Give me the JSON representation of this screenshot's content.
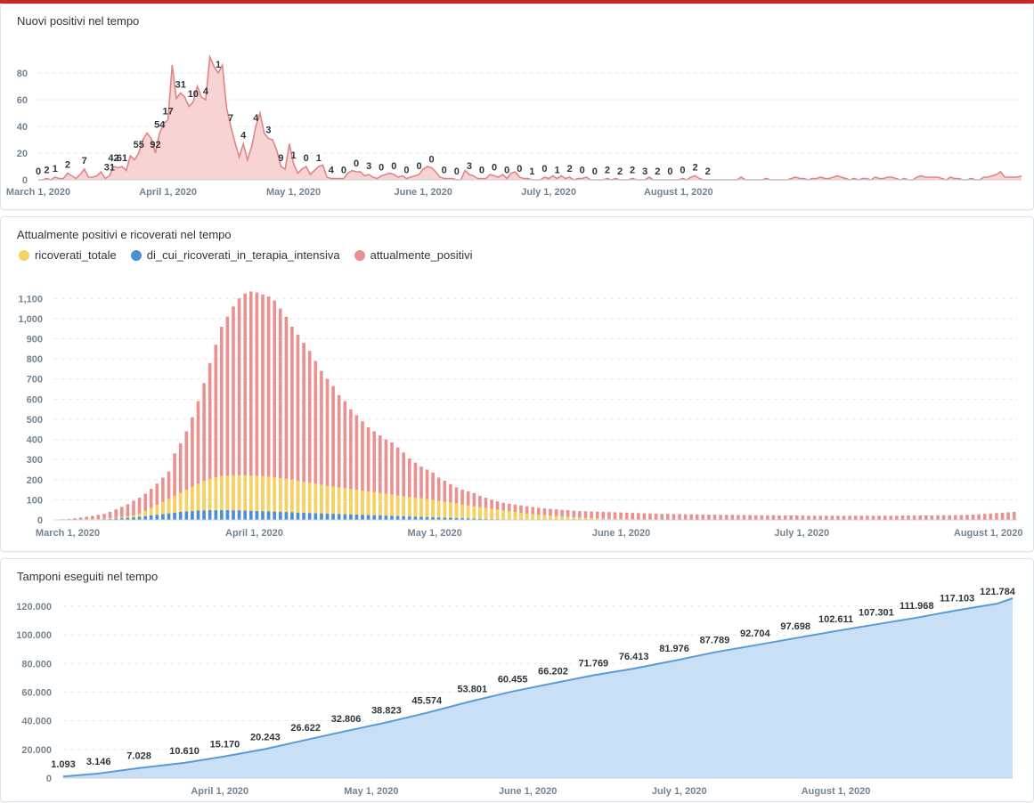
{
  "colors": {
    "accent_bar": "#c62828",
    "area1_line": "#e08585",
    "area1_fill": "#f8d3d3",
    "ricoverati": "#f4d35e",
    "terapia": "#4a90d9",
    "positivi": "#ec8f8f",
    "area3_line": "#5b9bd5",
    "area3_fill": "#c9dff5"
  },
  "chart_data": [
    {
      "type": "area",
      "title": "Nuovi positivi nel tempo",
      "x_tick_labels": [
        "March 1, 2020",
        "April 1, 2020",
        "May 1, 2020",
        "June 1, 2020",
        "July 1, 2020",
        "August 1, 2020"
      ],
      "y_ticks": [
        "0",
        "20",
        "40",
        "60",
        "80"
      ],
      "ylim": [
        0,
        100
      ],
      "x_start": "2020-03-01",
      "values": [
        0,
        0,
        1,
        0,
        2,
        1,
        1,
        5,
        3,
        1,
        4,
        8,
        2,
        2,
        3,
        6,
        1,
        3,
        10,
        9,
        10,
        7,
        18,
        15,
        20,
        30,
        35,
        31,
        20,
        35,
        42,
        45,
        86,
        61,
        65,
        62,
        55,
        58,
        70,
        62,
        60,
        92,
        85,
        80,
        86,
        54,
        40,
        28,
        17,
        27,
        15,
        25,
        40,
        50,
        35,
        31,
        30,
        22,
        10,
        8,
        27,
        12,
        5,
        8,
        10,
        4,
        7,
        10,
        11,
        2,
        1,
        1,
        1,
        1,
        5,
        7,
        6,
        6,
        3,
        4,
        2,
        1,
        3,
        4,
        5,
        4,
        2,
        3,
        1,
        2,
        3,
        4,
        8,
        10,
        9,
        6,
        2,
        1,
        1,
        1,
        0,
        0,
        7,
        4,
        3,
        1,
        1,
        1,
        4,
        3,
        2,
        4,
        1,
        5,
        6,
        2,
        1,
        1,
        0,
        0,
        0,
        2,
        1,
        3,
        1,
        3,
        1,
        2,
        0,
        1,
        1,
        2,
        0,
        0,
        0,
        0,
        1,
        0,
        1,
        0,
        0,
        0,
        1,
        0,
        0,
        0,
        2,
        0,
        0,
        0,
        0,
        0,
        0,
        0,
        1,
        0,
        2,
        3,
        1,
        0,
        0,
        0,
        0,
        0,
        0,
        0,
        0,
        0,
        2,
        0,
        0,
        0,
        0,
        0,
        1,
        0,
        0,
        0,
        0,
        0,
        1,
        2,
        1,
        1,
        0,
        1,
        1,
        2,
        1,
        1,
        2,
        3,
        2,
        1,
        0,
        1,
        0,
        1,
        1,
        0,
        2,
        1,
        1,
        2,
        2,
        1,
        0,
        1,
        0,
        0,
        2,
        3,
        2,
        2,
        2,
        2,
        1,
        0,
        2,
        1,
        1,
        0,
        0,
        1,
        0,
        0,
        2,
        2,
        3,
        4,
        6,
        2,
        2,
        2,
        2,
        3
      ],
      "data_labels": [
        {
          "x": "2020-03-01",
          "label": "0"
        },
        {
          "x": "2020-03-03",
          "label": "2"
        },
        {
          "x": "2020-03-05",
          "label": "1"
        },
        {
          "x": "2020-03-08",
          "label": "2"
        },
        {
          "x": "2020-03-12",
          "label": "7"
        },
        {
          "x": "2020-03-18",
          "label": "31"
        },
        {
          "x": "2020-03-19",
          "label": "42"
        },
        {
          "x": "2020-03-21",
          "label": "61"
        },
        {
          "x": "2020-03-25",
          "label": "55"
        },
        {
          "x": "2020-03-29",
          "label": "92"
        },
        {
          "x": "2020-03-30",
          "label": "54"
        },
        {
          "x": "2020-04-01",
          "label": "17"
        },
        {
          "x": "2020-04-04",
          "label": "31"
        },
        {
          "x": "2020-04-07",
          "label": "10"
        },
        {
          "x": "2020-04-10",
          "label": "4"
        },
        {
          "x": "2020-04-13",
          "label": "1"
        },
        {
          "x": "2020-04-16",
          "label": "7"
        },
        {
          "x": "2020-04-19",
          "label": "4"
        },
        {
          "x": "2020-04-22",
          "label": "4"
        },
        {
          "x": "2020-04-25",
          "label": "3"
        },
        {
          "x": "2020-04-28",
          "label": "9"
        },
        {
          "x": "2020-05-01",
          "label": "1"
        },
        {
          "x": "2020-05-04",
          "label": "0"
        },
        {
          "x": "2020-05-07",
          "label": "1"
        },
        {
          "x": "2020-05-10",
          "label": "4"
        },
        {
          "x": "2020-05-13",
          "label": "0"
        },
        {
          "x": "2020-05-16",
          "label": "0"
        },
        {
          "x": "2020-05-19",
          "label": "3"
        },
        {
          "x": "2020-05-22",
          "label": "0"
        },
        {
          "x": "2020-05-25",
          "label": "0"
        },
        {
          "x": "2020-05-28",
          "label": "0"
        },
        {
          "x": "2020-05-31",
          "label": "0"
        },
        {
          "x": "2020-06-03",
          "label": "0"
        },
        {
          "x": "2020-06-06",
          "label": "0"
        },
        {
          "x": "2020-06-09",
          "label": "0"
        },
        {
          "x": "2020-06-12",
          "label": "3"
        },
        {
          "x": "2020-06-15",
          "label": "0"
        },
        {
          "x": "2020-06-18",
          "label": "0"
        },
        {
          "x": "2020-06-21",
          "label": "0"
        },
        {
          "x": "2020-06-24",
          "label": "0"
        },
        {
          "x": "2020-06-27",
          "label": "1"
        },
        {
          "x": "2020-06-30",
          "label": "0"
        },
        {
          "x": "2020-07-03",
          "label": "1"
        },
        {
          "x": "2020-07-06",
          "label": "2"
        },
        {
          "x": "2020-07-09",
          "label": "0"
        },
        {
          "x": "2020-07-12",
          "label": "0"
        },
        {
          "x": "2020-07-15",
          "label": "2"
        },
        {
          "x": "2020-07-18",
          "label": "2"
        },
        {
          "x": "2020-07-21",
          "label": "2"
        },
        {
          "x": "2020-07-24",
          "label": "3"
        },
        {
          "x": "2020-07-27",
          "label": "2"
        },
        {
          "x": "2020-07-30",
          "label": "0"
        },
        {
          "x": "2020-08-02",
          "label": "0"
        },
        {
          "x": "2020-08-05",
          "label": "2"
        },
        {
          "x": "2020-08-08",
          "label": "2"
        }
      ]
    },
    {
      "type": "bar",
      "title": "Attualmente positivi e ricoverati nel tempo",
      "legend": [
        "ricoverati_totale",
        "di_cui_ricoverati_in_terapia_intensiva",
        "attualmente_positivi"
      ],
      "x_tick_labels": [
        "March 1, 2020",
        "April 1, 2020",
        "May 1, 2020",
        "June 1, 2020",
        "July 1, 2020",
        "August 1, 2020"
      ],
      "y_ticks": [
        "0",
        "100",
        "200",
        "300",
        "400",
        "500",
        "600",
        "700",
        "800",
        "900",
        "1,000",
        "1,100"
      ],
      "ylim": [
        0,
        1150
      ],
      "x_start": "2020-03-01",
      "series": [
        {
          "name": "attualmente_positivi",
          "values": [
            1,
            3,
            5,
            8,
            12,
            16,
            20,
            25,
            30,
            40,
            52,
            65,
            78,
            95,
            110,
            130,
            155,
            180,
            210,
            240,
            330,
            380,
            440,
            510,
            590,
            680,
            780,
            870,
            960,
            1010,
            1060,
            1100,
            1125,
            1135,
            1130,
            1120,
            1110,
            1090,
            1050,
            1010,
            960,
            920,
            880,
            840,
            790,
            740,
            700,
            665,
            620,
            590,
            550,
            520,
            490,
            460,
            440,
            420,
            400,
            385,
            360,
            335,
            305,
            285,
            265,
            250,
            235,
            210,
            195,
            178,
            162,
            150,
            142,
            133,
            120,
            110,
            100,
            92,
            85,
            80,
            76,
            72,
            68,
            64,
            60,
            57,
            55,
            52,
            50,
            48,
            46,
            44,
            43,
            42,
            41,
            40,
            39,
            38,
            37,
            36,
            35,
            34,
            33,
            32,
            31,
            30,
            30,
            29,
            29,
            28,
            28,
            27,
            27,
            26,
            26,
            25,
            25,
            25,
            24,
            24,
            24,
            23,
            23,
            23,
            23,
            22,
            22,
            22,
            22,
            22,
            21,
            21,
            21,
            21,
            21,
            21,
            21,
            21,
            21,
            21,
            21,
            21,
            21,
            21,
            21,
            21,
            22,
            22,
            22,
            22,
            22,
            22,
            23,
            23,
            23,
            24,
            24,
            25,
            26,
            28,
            30,
            32,
            34,
            36,
            38,
            40
          ]
        },
        {
          "name": "ricoverati_totale",
          "values": [
            0,
            0,
            1,
            1,
            2,
            3,
            4,
            5,
            7,
            9,
            11,
            14,
            18,
            24,
            32,
            45,
            60,
            75,
            90,
            105,
            120,
            135,
            150,
            165,
            180,
            195,
            205,
            212,
            218,
            220,
            222,
            222,
            222,
            220,
            220,
            218,
            216,
            212,
            208,
            204,
            200,
            195,
            190,
            185,
            180,
            175,
            170,
            166,
            162,
            158,
            154,
            150,
            146,
            142,
            138,
            134,
            130,
            126,
            122,
            118,
            114,
            110,
            108,
            104,
            100,
            95,
            90,
            86,
            82,
            78,
            72,
            68,
            64,
            60,
            56,
            52,
            48,
            44,
            40,
            36,
            32,
            29,
            26,
            24,
            22,
            20,
            18,
            16,
            14,
            12,
            10,
            9,
            8,
            7,
            6,
            5,
            5,
            4,
            4,
            3,
            3,
            3,
            2,
            2,
            2,
            2,
            2,
            1,
            1,
            1,
            1,
            1,
            1,
            1,
            1,
            1,
            1,
            1,
            0,
            0,
            0,
            0,
            0,
            0,
            0,
            0,
            0,
            0,
            0,
            0,
            0,
            0,
            0,
            0,
            0,
            0,
            0,
            0,
            0,
            0,
            0,
            0,
            0,
            0,
            0,
            0,
            0,
            0,
            0,
            0,
            0,
            0,
            0,
            0,
            0,
            0,
            0,
            0,
            0,
            0,
            0,
            0,
            0,
            0
          ]
        },
        {
          "name": "di_cui_ricoverati_in_terapia_intensiva",
          "values": [
            0,
            0,
            0,
            0,
            0,
            1,
            1,
            2,
            3,
            4,
            6,
            8,
            10,
            12,
            15,
            18,
            22,
            25,
            28,
            32,
            36,
            40,
            42,
            44,
            46,
            47,
            48,
            48,
            48,
            48,
            47,
            47,
            46,
            45,
            44,
            43,
            42,
            41,
            40,
            39,
            38,
            36,
            35,
            34,
            33,
            32,
            31,
            30,
            29,
            28,
            27,
            26,
            25,
            24,
            23,
            22,
            21,
            20,
            19,
            18,
            17,
            16,
            15,
            14,
            13,
            12,
            11,
            10,
            9,
            8,
            7,
            6,
            5,
            4,
            3,
            3,
            2,
            2,
            2,
            1,
            1,
            1,
            1,
            1,
            0,
            0,
            0,
            0,
            0,
            0,
            0,
            0,
            0,
            0,
            0,
            0,
            0,
            0,
            0,
            0,
            0,
            0,
            0,
            0,
            0,
            0,
            0,
            0,
            0,
            0,
            0,
            0,
            0,
            0,
            0,
            0,
            0,
            0,
            0,
            0,
            0,
            0,
            0,
            0,
            0,
            0,
            0,
            0,
            0,
            0,
            0,
            0,
            0,
            0,
            0,
            0,
            0,
            0,
            0,
            0,
            0,
            0,
            0,
            0,
            0,
            0,
            0,
            0,
            0,
            0,
            0,
            0,
            0,
            0,
            0,
            0,
            0,
            0,
            0,
            0,
            0,
            0
          ]
        }
      ]
    },
    {
      "type": "area",
      "title": "Tamponi eseguiti nel tempo",
      "x_tick_labels": [
        "April 1, 2020",
        "May 1, 2020",
        "June 1, 2020",
        "July 1, 2020",
        "August 1, 2020"
      ],
      "y_ticks": [
        "0",
        "20.000",
        "40.000",
        "60.000",
        "80.000",
        "100.000",
        "120.000"
      ],
      "ylim": [
        0,
        128000
      ],
      "x_start": "2020-03-01",
      "points": [
        {
          "x": "2020-03-01",
          "y": 1093
        },
        {
          "x": "2020-03-08",
          "y": 3146
        },
        {
          "x": "2020-03-16",
          "y": 7028
        },
        {
          "x": "2020-03-25",
          "y": 10610
        },
        {
          "x": "2020-04-02",
          "y": 15170
        },
        {
          "x": "2020-04-10",
          "y": 20243
        },
        {
          "x": "2020-04-18",
          "y": 26622
        },
        {
          "x": "2020-04-26",
          "y": 32806
        },
        {
          "x": "2020-05-04",
          "y": 38823
        },
        {
          "x": "2020-05-12",
          "y": 45574
        },
        {
          "x": "2020-05-21",
          "y": 53801
        },
        {
          "x": "2020-05-29",
          "y": 60455
        },
        {
          "x": "2020-06-06",
          "y": 66202
        },
        {
          "x": "2020-06-14",
          "y": 71769
        },
        {
          "x": "2020-06-22",
          "y": 76413
        },
        {
          "x": "2020-06-30",
          "y": 81976
        },
        {
          "x": "2020-07-08",
          "y": 87789
        },
        {
          "x": "2020-07-16",
          "y": 92704
        },
        {
          "x": "2020-07-24",
          "y": 97698
        },
        {
          "x": "2020-08-01",
          "y": 102611
        },
        {
          "x": "2020-08-09",
          "y": 107301
        },
        {
          "x": "2020-08-17",
          "y": 111968
        },
        {
          "x": "2020-08-25",
          "y": 117103
        },
        {
          "x": "2020-09-02",
          "y": 121784
        },
        {
          "x": "2020-09-05",
          "y": 125500
        }
      ],
      "data_labels": [
        "1.093",
        "3.146",
        "7.028",
        "10.610",
        "15.170",
        "20.243",
        "26.622",
        "32.806",
        "38.823",
        "45.574",
        "53.801",
        "60.455",
        "66.202",
        "71.769",
        "76.413",
        "81.976",
        "87.789",
        "92.704",
        "97.698",
        "102.611",
        "107.301",
        "111.968",
        "117.103",
        "121.784"
      ]
    }
  ]
}
